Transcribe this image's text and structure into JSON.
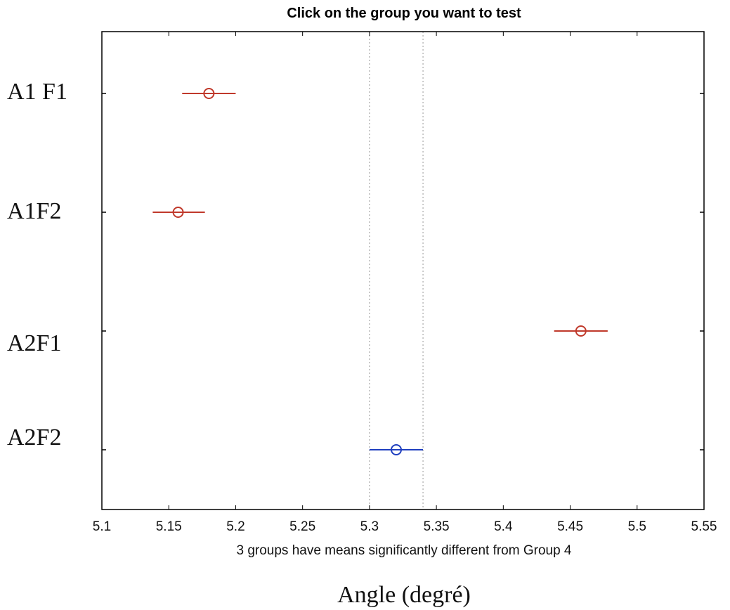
{
  "chart_data": {
    "type": "scatter",
    "title": "Click on the group you want to test",
    "note": "3 groups have means significantly different from Group 4",
    "xlabel": "Angle (degré)",
    "xlim": [
      5.1,
      5.55
    ],
    "xticks": [
      "5.1",
      "5.15",
      "5.2",
      "5.25",
      "5.3",
      "5.35",
      "5.4",
      "5.45",
      "5.5",
      "5.55"
    ],
    "reference_lines": [
      5.3,
      5.34
    ],
    "grid": false,
    "groups": [
      {
        "label": "A1 F1",
        "mean": 5.18,
        "lower": 5.16,
        "upper": 5.2,
        "color": "#c0392b"
      },
      {
        "label": "A1F2",
        "mean": 5.157,
        "lower": 5.138,
        "upper": 5.177,
        "color": "#c0392b"
      },
      {
        "label": "A2F1",
        "mean": 5.458,
        "lower": 5.438,
        "upper": 5.478,
        "color": "#c0392b"
      },
      {
        "label": "A2F2",
        "mean": 5.32,
        "lower": 5.3,
        "upper": 5.34,
        "color": "#1f3fbf"
      }
    ]
  }
}
